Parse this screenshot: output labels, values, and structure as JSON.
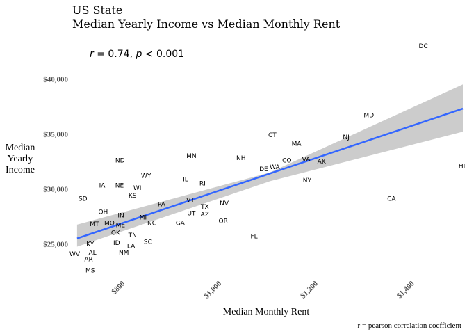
{
  "chart_data": {
    "type": "scatter",
    "title": "US State",
    "subtitle": "Median Yearly Income vs Median Monthly Rent",
    "annotation": {
      "r_label": "r",
      "r_value": " = 0.74, ",
      "p_label": "p",
      "p_value": " < 0.001"
    },
    "xlabel": "Median Monthly Rent",
    "ylabel": [
      "Median",
      "Yearly",
      "Income"
    ],
    "caption": "r = pearson correlation coefficient",
    "xlim": [
      690,
      1500
    ],
    "ylim": [
      22000,
      43500
    ],
    "x_ticks": [
      {
        "value": 800,
        "label": "$800"
      },
      {
        "value": 1000,
        "label": "$1,000"
      },
      {
        "value": 1200,
        "label": "$1,200"
      },
      {
        "value": 1400,
        "label": "$1,400"
      }
    ],
    "y_ticks": [
      {
        "value": 25000,
        "label": "$25,000"
      },
      {
        "value": 30000,
        "label": "$30,000"
      },
      {
        "value": 35000,
        "label": "$35,000"
      },
      {
        "value": 40000,
        "label": "$40,000"
      }
    ],
    "grid": false,
    "legend": "none",
    "fit": {
      "x_start": 700,
      "y_start": 25500,
      "x_end": 1500,
      "y_end": 37300,
      "band_lower_start": 24750,
      "band_upper_start": 26750,
      "band_lower_mid": 30700,
      "band_upper_mid": 31500,
      "x_mid": 1100,
      "band_lower_end": 35200,
      "band_upper_end": 39500
    },
    "colors": {
      "line": "#3366ff",
      "band": "#cccccc",
      "tick_text": "#4d4d4d"
    },
    "points": [
      {
        "label": "DC",
        "x": 1418,
        "y": 43000
      },
      {
        "label": "MD",
        "x": 1305,
        "y": 36700
      },
      {
        "label": "HI",
        "x": 1498,
        "y": 32100
      },
      {
        "label": "CA",
        "x": 1352,
        "y": 29100
      },
      {
        "label": "NJ",
        "x": 1258,
        "y": 34700
      },
      {
        "label": "CT",
        "x": 1105,
        "y": 34900
      },
      {
        "label": "MA",
        "x": 1155,
        "y": 34100
      },
      {
        "label": "NH",
        "x": 1040,
        "y": 32800
      },
      {
        "label": "CO",
        "x": 1135,
        "y": 32600
      },
      {
        "label": "VA",
        "x": 1175,
        "y": 32700
      },
      {
        "label": "AK",
        "x": 1207,
        "y": 32500
      },
      {
        "label": "WA",
        "x": 1110,
        "y": 32000
      },
      {
        "label": "DE",
        "x": 1087,
        "y": 31800
      },
      {
        "label": "NY",
        "x": 1177,
        "y": 30800
      },
      {
        "label": "MN",
        "x": 937,
        "y": 33000
      },
      {
        "label": "ND",
        "x": 789,
        "y": 32600
      },
      {
        "label": "WY",
        "x": 843,
        "y": 31200
      },
      {
        "label": "IL",
        "x": 925,
        "y": 30900
      },
      {
        "label": "RI",
        "x": 960,
        "y": 30500
      },
      {
        "label": "IA",
        "x": 752,
        "y": 30300
      },
      {
        "label": "NE",
        "x": 788,
        "y": 30300
      },
      {
        "label": "WI",
        "x": 825,
        "y": 30100
      },
      {
        "label": "KS",
        "x": 815,
        "y": 29400
      },
      {
        "label": "SD",
        "x": 712,
        "y": 29100
      },
      {
        "label": "VT",
        "x": 935,
        "y": 29000
      },
      {
        "label": "PA",
        "x": 875,
        "y": 28600
      },
      {
        "label": "NV",
        "x": 1005,
        "y": 28700
      },
      {
        "label": "TX",
        "x": 965,
        "y": 28400
      },
      {
        "label": "UT",
        "x": 937,
        "y": 27800
      },
      {
        "label": "AZ",
        "x": 965,
        "y": 27700
      },
      {
        "label": "OR",
        "x": 1003,
        "y": 27100
      },
      {
        "label": "OH",
        "x": 754,
        "y": 27900
      },
      {
        "label": "IN",
        "x": 791,
        "y": 27600
      },
      {
        "label": "MI",
        "x": 837,
        "y": 27400
      },
      {
        "label": "MT",
        "x": 736,
        "y": 26800
      },
      {
        "label": "MO",
        "x": 767,
        "y": 26900
      },
      {
        "label": "ME",
        "x": 790,
        "y": 26700
      },
      {
        "label": "NC",
        "x": 855,
        "y": 26900
      },
      {
        "label": "GA",
        "x": 914,
        "y": 26900
      },
      {
        "label": "OK",
        "x": 780,
        "y": 26000
      },
      {
        "label": "TN",
        "x": 815,
        "y": 25800
      },
      {
        "label": "FL",
        "x": 1067,
        "y": 25700
      },
      {
        "label": "KY",
        "x": 727,
        "y": 25000
      },
      {
        "label": "ID",
        "x": 782,
        "y": 25100
      },
      {
        "label": "SC",
        "x": 847,
        "y": 25200
      },
      {
        "label": "LA",
        "x": 812,
        "y": 24800
      },
      {
        "label": "WV",
        "x": 695,
        "y": 24100
      },
      {
        "label": "AL",
        "x": 732,
        "y": 24200
      },
      {
        "label": "NM",
        "x": 797,
        "y": 24200
      },
      {
        "label": "AR",
        "x": 724,
        "y": 23600
      },
      {
        "label": "MS",
        "x": 727,
        "y": 22600
      }
    ]
  }
}
